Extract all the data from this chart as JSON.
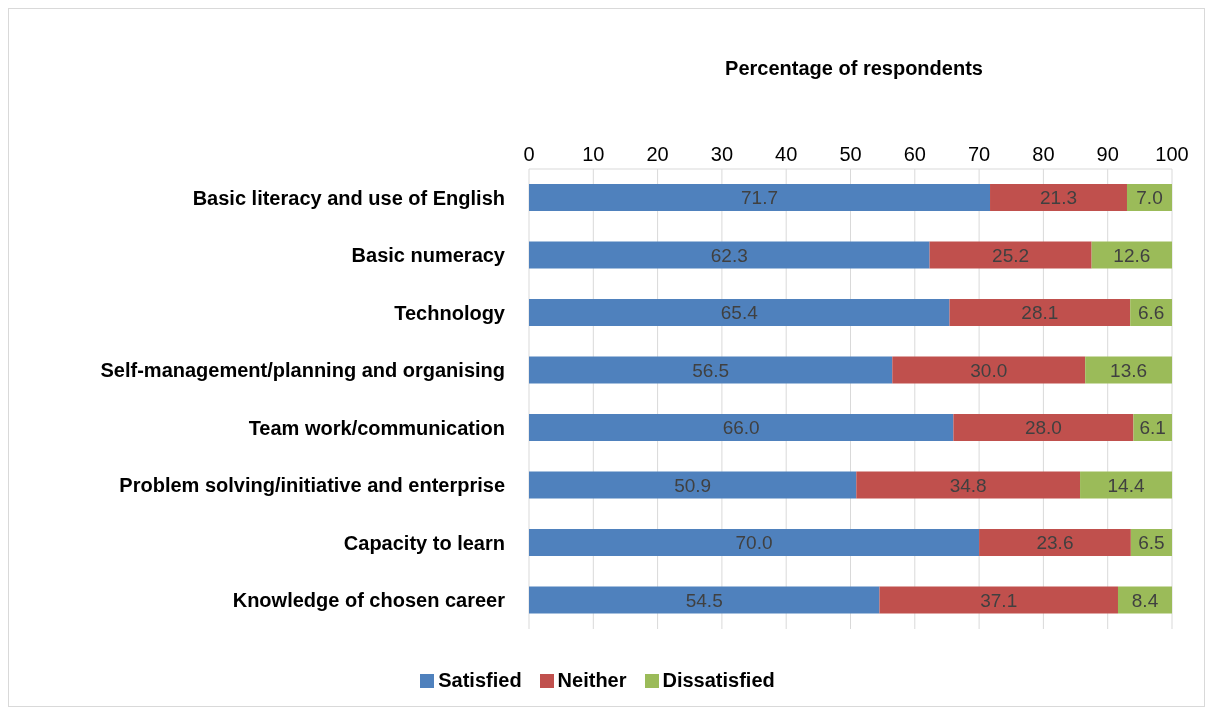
{
  "chart_data": {
    "type": "bar",
    "orientation": "horizontal",
    "stacked": true,
    "xlabel": "Percentage of respondents",
    "categories": [
      "Basic literacy and use of English",
      "Basic numeracy",
      "Technology",
      "Self-management/planning and organising",
      "Team work/communication",
      "Problem solving/initiative and enterprise",
      "Capacity to learn",
      "Knowledge of chosen career"
    ],
    "series": [
      {
        "name": "Satisfied",
        "color": "#4f81bd",
        "values": [
          71.7,
          62.3,
          65.4,
          56.5,
          66.0,
          50.9,
          70.0,
          54.5
        ],
        "value_labels": [
          "71.7",
          "62.3",
          "65.4",
          "56.5",
          "66.0",
          "50.9",
          "70.0",
          "54.5"
        ]
      },
      {
        "name": "Neither",
        "color": "#c0504d",
        "values": [
          21.3,
          25.2,
          28.1,
          30.0,
          28.0,
          34.8,
          23.6,
          37.1
        ],
        "value_labels": [
          "21.3",
          "25.2",
          "28.1",
          "30.0",
          "28.0",
          "34.8",
          "23.6",
          "37.1"
        ]
      },
      {
        "name": "Dissatisfied",
        "color": "#9bbb59",
        "values": [
          7.0,
          12.6,
          6.6,
          13.6,
          6.1,
          14.4,
          6.5,
          8.4
        ],
        "value_labels": [
          "7.0",
          "12.6",
          "6.6",
          "13.6",
          "6.1",
          "14.4",
          "6.5",
          "8.4"
        ]
      }
    ],
    "xlim": [
      0,
      100
    ],
    "xticks": [
      0,
      10,
      20,
      30,
      40,
      50,
      60,
      70,
      80,
      90,
      100
    ],
    "grid": "x",
    "legend": "bottom"
  }
}
